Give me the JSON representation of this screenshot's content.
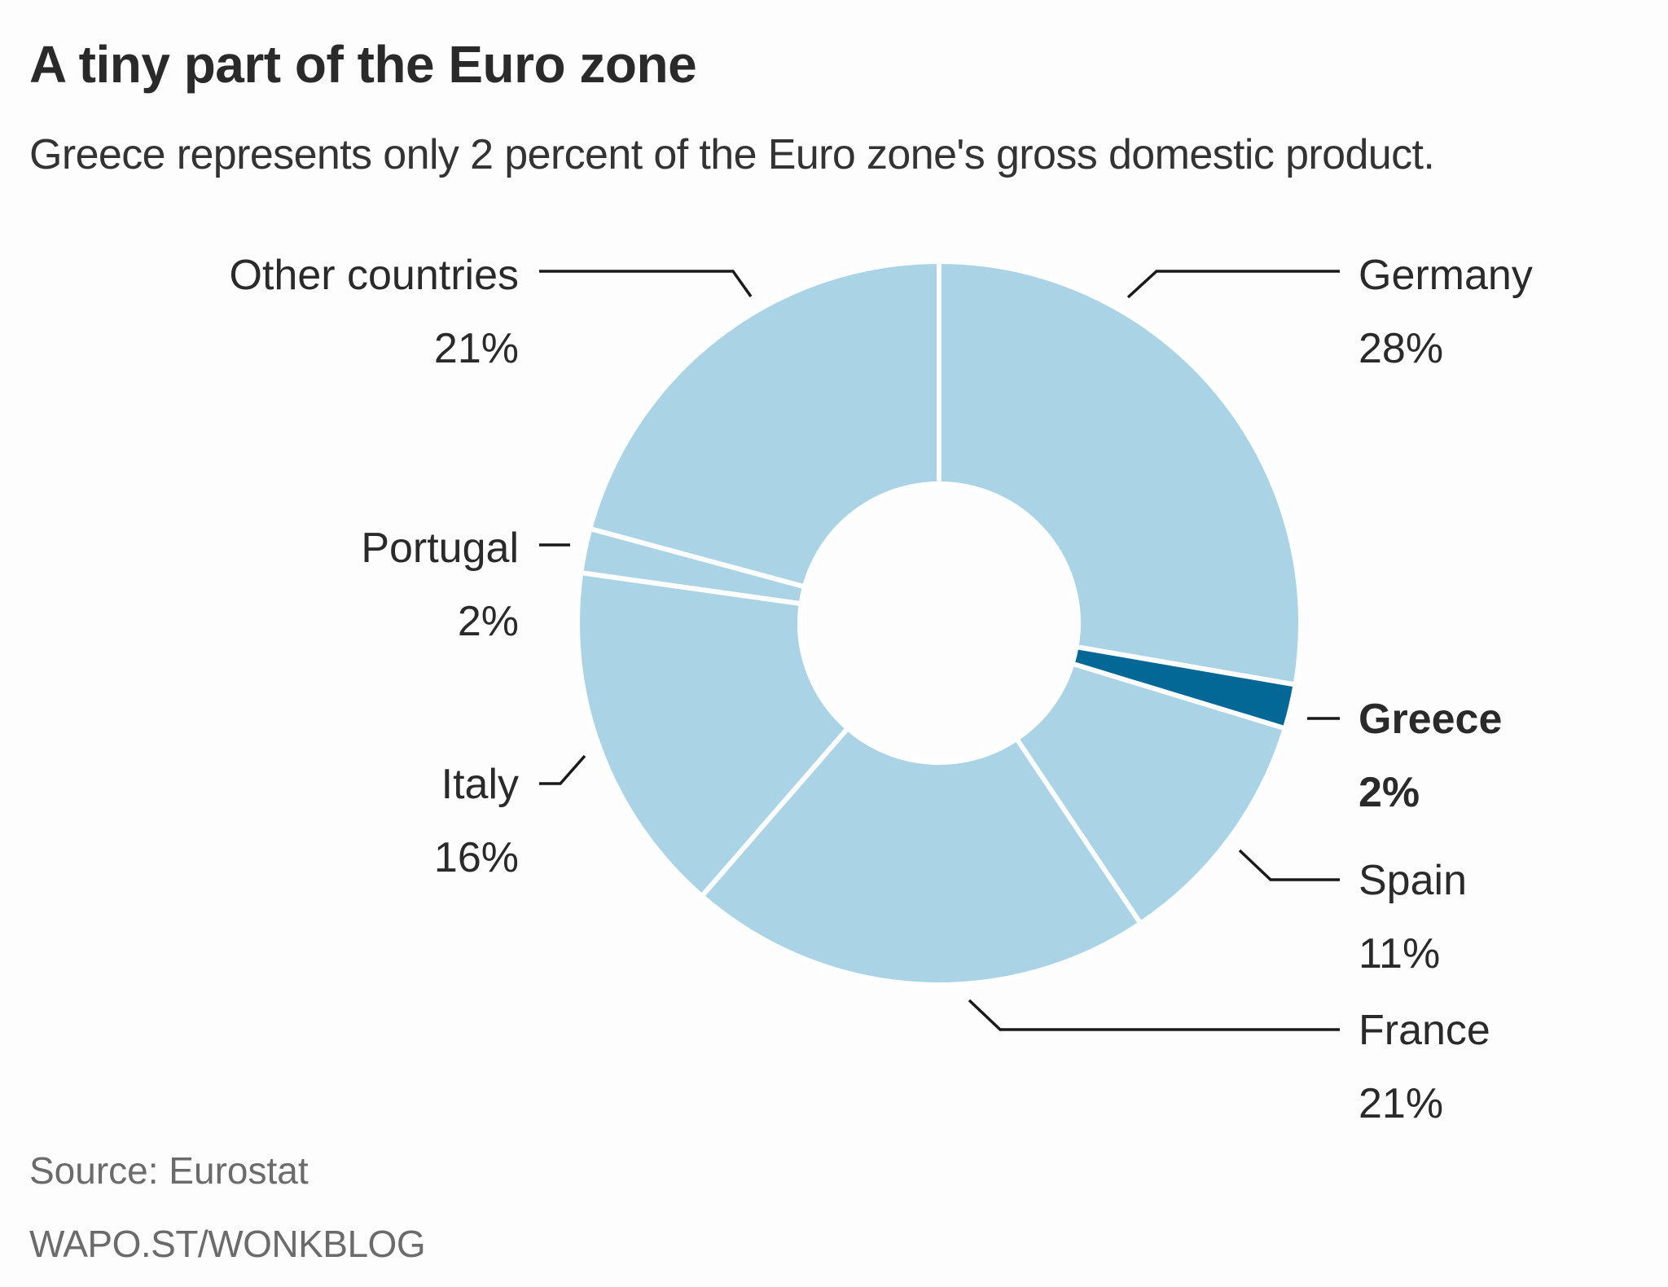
{
  "header": {
    "title": "A tiny part of the Euro zone",
    "subtitle": "Greece represents only 2 percent of the Euro zone's gross domestic product."
  },
  "footer": {
    "source": "Source: Eurostat",
    "credit": "WAPO.ST/WONKBLOG"
  },
  "colors": {
    "slice": "#aad3e6",
    "highlight": "#036895",
    "separator": "#ffffff",
    "text": "#2a2a2a"
  },
  "chart_data": {
    "type": "pie",
    "variant": "donut",
    "title": "A tiny part of the Euro zone",
    "subtitle": "Greece represents only 2 percent of the Euro zone's gross domestic product.",
    "unit": "percent of Euro zone GDP",
    "start": "top",
    "direction": "clockwise",
    "slices": [
      {
        "label": "Germany",
        "value": 28,
        "display": "28%",
        "highlight": false,
        "label_side": "right"
      },
      {
        "label": "Greece",
        "value": 2,
        "display": "2%",
        "highlight": true,
        "label_side": "right"
      },
      {
        "label": "Spain",
        "value": 11,
        "display": "11%",
        "highlight": false,
        "label_side": "right"
      },
      {
        "label": "France",
        "value": 21,
        "display": "21%",
        "highlight": false,
        "label_side": "right"
      },
      {
        "label": "Italy",
        "value": 16,
        "display": "16%",
        "highlight": false,
        "label_side": "left"
      },
      {
        "label": "Portugal",
        "value": 2,
        "display": "2%",
        "highlight": false,
        "label_side": "left"
      },
      {
        "label": "Other countries",
        "value": 21,
        "display": "21%",
        "highlight": false,
        "label_side": "left"
      }
    ],
    "source": "Source: Eurostat"
  }
}
